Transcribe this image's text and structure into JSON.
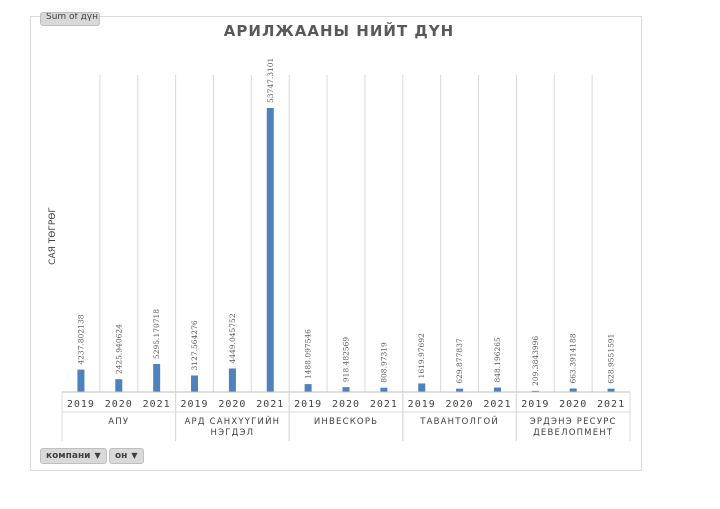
{
  "value_field_button": "Sum of дүн",
  "filters": {
    "company_label": "компани",
    "year_label": "он"
  },
  "chart_data": {
    "type": "bar",
    "title": "АРИЛЖААНЫ НИЙТ ДҮН",
    "ylabel": "САЯ ТӨГРӨГ",
    "xlabel": "",
    "grid": true,
    "legend": "none",
    "color": "#4f81bd",
    "ylim": [
      0,
      53747.3101
    ],
    "groups": [
      {
        "name": "АПУ",
        "name_lines": [
          "АПУ"
        ],
        "years": [
          "2019",
          "2020",
          "2021"
        ],
        "values": [
          4237.802138,
          2425.940624,
          5295.170718
        ],
        "labels": [
          "4237.802138",
          "2425.940624",
          "5295.170718"
        ]
      },
      {
        "name": "АРД САНХҮҮГИЙН НЭГДЭЛ",
        "name_lines": [
          "АРД САНХҮҮГИЙН",
          "НЭГДЭЛ"
        ],
        "years": [
          "2019",
          "2020",
          "2021"
        ],
        "values": [
          3127.564276,
          4449.045752,
          53747.3101
        ],
        "labels": [
          "3127.564276",
          "4449.045752",
          "53747.3101"
        ]
      },
      {
        "name": "ИНВЕСКОРЬ",
        "name_lines": [
          "ИНВЕСКОРЬ"
        ],
        "years": [
          "2019",
          "2020",
          "2021"
        ],
        "values": [
          1488.097546,
          918.482569,
          808.97319
        ],
        "labels": [
          "1488.097546",
          "918.482569",
          "808.97319"
        ]
      },
      {
        "name": "ТАВАНТОЛГОЙ",
        "name_lines": [
          "ТАВАНТОЛГОЙ"
        ],
        "years": [
          "2019",
          "2020",
          "2021"
        ],
        "values": [
          1619.97692,
          629.877837,
          848.196265
        ],
        "labels": [
          "1619.97692",
          "629.877837",
          "848.196265"
        ]
      },
      {
        "name": "ЭРДЭНЭ РЕСУРС ДЕВЕЛОПМЕНТ",
        "name_lines": [
          "ЭРДЭНЭ РЕСУРС",
          "ДЕВЕЛОПМЕНТ"
        ],
        "years": [
          "2019",
          "2020",
          "2021"
        ],
        "values": [
          209.3843996,
          663.3914188,
          628.9551591
        ],
        "labels": [
          "209.3843996",
          "663.3914188",
          "628.9551591"
        ]
      }
    ]
  }
}
